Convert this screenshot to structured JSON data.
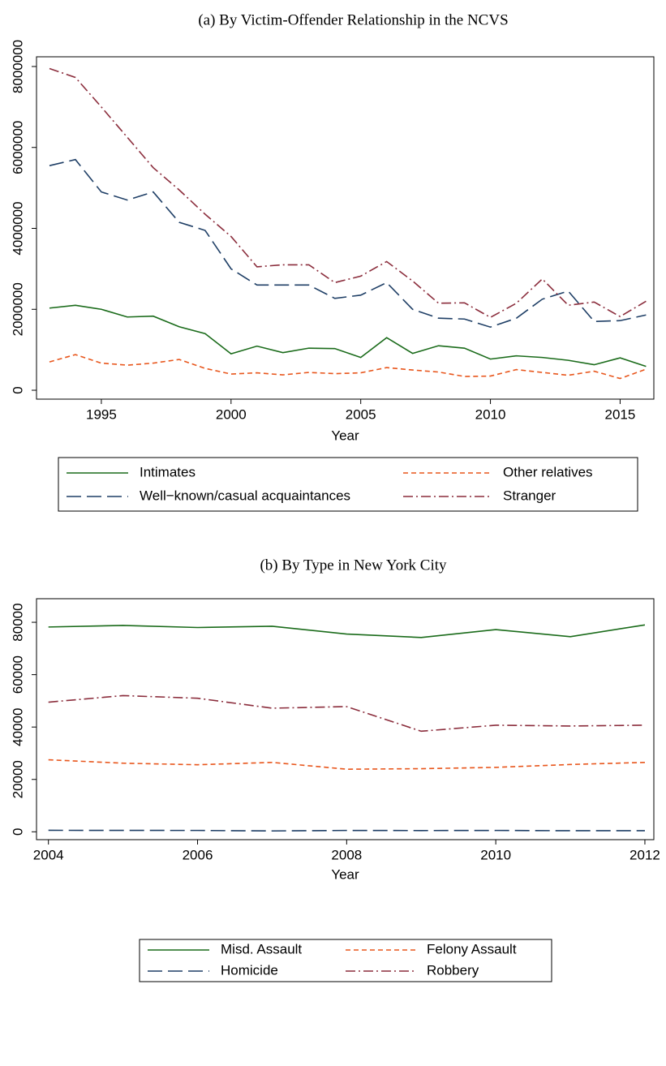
{
  "chart_data": [
    {
      "type": "line",
      "title": "(a) By Victim-Offender Relationship in the NCVS",
      "x_label": "Year",
      "x": [
        1993,
        1994,
        1995,
        1996,
        1997,
        1998,
        1999,
        2000,
        2001,
        2002,
        2003,
        2004,
        2005,
        2006,
        2007,
        2008,
        2009,
        2010,
        2011,
        2012,
        2013,
        2014,
        2015,
        2016
      ],
      "xlim": [
        1992.5,
        2016.3
      ],
      "xticks": [
        1995,
        2000,
        2005,
        2010,
        2015
      ],
      "ylim": [
        -220000,
        8240000
      ],
      "yticks": [
        0,
        2000000,
        4000000,
        6000000,
        8000000
      ],
      "series": [
        {
          "name": "Intimates",
          "color": "#1a6b1a",
          "dash": "solid",
          "values": [
            2030000,
            2100000,
            2000000,
            1810000,
            1830000,
            1570000,
            1400000,
            900000,
            1090000,
            930000,
            1040000,
            1030000,
            810000,
            1300000,
            910000,
            1100000,
            1040000,
            770000,
            850000,
            810000,
            740000,
            630000,
            800000,
            590000
          ]
        },
        {
          "name": "Other relatives",
          "color": "#e8561c",
          "dash": "short",
          "values": [
            700000,
            880000,
            670000,
            620000,
            670000,
            760000,
            540000,
            400000,
            430000,
            380000,
            440000,
            410000,
            430000,
            560000,
            500000,
            450000,
            340000,
            350000,
            510000,
            440000,
            370000,
            470000,
            290000,
            520000
          ]
        },
        {
          "name": "Well−known/casual acquaintances",
          "color": "#1f3f66",
          "dash": "long",
          "values": [
            5550000,
            5700000,
            4900000,
            4700000,
            4900000,
            4150000,
            3950000,
            3000000,
            2600000,
            2600000,
            2600000,
            2270000,
            2350000,
            2660000,
            2000000,
            1780000,
            1760000,
            1560000,
            1780000,
            2250000,
            2450000,
            1700000,
            1720000,
            1860000
          ]
        },
        {
          "name": "Stranger",
          "color": "#8b2d3c",
          "dash": "dashdot",
          "values": [
            7950000,
            7730000,
            7000000,
            6250000,
            5500000,
            4950000,
            4350000,
            3800000,
            3050000,
            3100000,
            3100000,
            2660000,
            2820000,
            3180000,
            2700000,
            2150000,
            2160000,
            1800000,
            2150000,
            2750000,
            2100000,
            2180000,
            1820000,
            2200000
          ]
        }
      ]
    },
    {
      "type": "line",
      "title": "(b) By Type in New York City",
      "x_label": "Year",
      "x": [
        2004,
        2005,
        2006,
        2007,
        2008,
        2009,
        2010,
        2011,
        2012
      ],
      "xlim": [
        2003.84,
        2012.12
      ],
      "xticks": [
        2004,
        2006,
        2008,
        2010,
        2012
      ],
      "ylim": [
        -3000,
        89000
      ],
      "yticks": [
        0,
        20000,
        40000,
        60000,
        80000
      ],
      "series": [
        {
          "name": "Misd. Assault",
          "color": "#1a6b1a",
          "dash": "solid",
          "values": [
            78200,
            78800,
            78000,
            78500,
            75500,
            74200,
            77200,
            74500,
            79000
          ]
        },
        {
          "name": "Felony Assault",
          "color": "#e8561c",
          "dash": "short",
          "values": [
            27500,
            26200,
            25600,
            26500,
            23900,
            24100,
            24600,
            25700,
            26500
          ]
        },
        {
          "name": "Homicide",
          "color": "#1f3f66",
          "dash": "long",
          "values": [
            570,
            540,
            520,
            330,
            520,
            480,
            520,
            420,
            420
          ]
        },
        {
          "name": "Robbery",
          "color": "#8b2d3c",
          "dash": "dashdot",
          "values": [
            49500,
            52000,
            51000,
            47200,
            47800,
            38400,
            40700,
            40400,
            40700
          ]
        }
      ]
    }
  ]
}
